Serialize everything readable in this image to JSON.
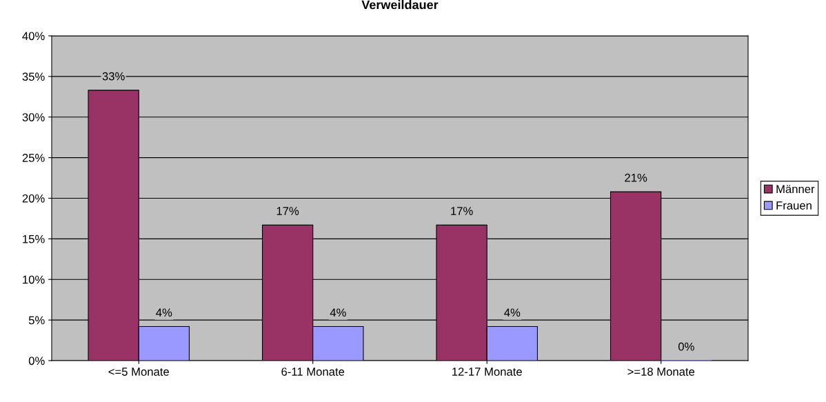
{
  "chart_data": {
    "type": "bar",
    "title": "Verweildauer",
    "categories": [
      "<=5 Monate",
      "6-11 Monate",
      "12-17 Monate",
      ">=18 Monate"
    ],
    "series": [
      {
        "name": "Männer",
        "color": "#993366",
        "values": [
          33.3,
          16.7,
          16.7,
          20.8
        ],
        "value_labels": [
          "33%",
          "17%",
          "17%",
          "21%"
        ]
      },
      {
        "name": "Frauen",
        "color": "#9999ff",
        "values": [
          4.2,
          4.2,
          4.2,
          0
        ],
        "value_labels": [
          "4%",
          "4%",
          "4%",
          "0%"
        ]
      }
    ],
    "ylim": [
      0,
      40
    ],
    "yticks": [
      {
        "value": 0,
        "label": "0%"
      },
      {
        "value": 5,
        "label": "5%"
      },
      {
        "value": 10,
        "label": "10%"
      },
      {
        "value": 15,
        "label": "15%"
      },
      {
        "value": 20,
        "label": "20%"
      },
      {
        "value": 25,
        "label": "25%"
      },
      {
        "value": 30,
        "label": "30%"
      },
      {
        "value": 35,
        "label": "35%"
      },
      {
        "value": 40,
        "label": "40%"
      }
    ],
    "grid": "y",
    "legend": "right"
  }
}
